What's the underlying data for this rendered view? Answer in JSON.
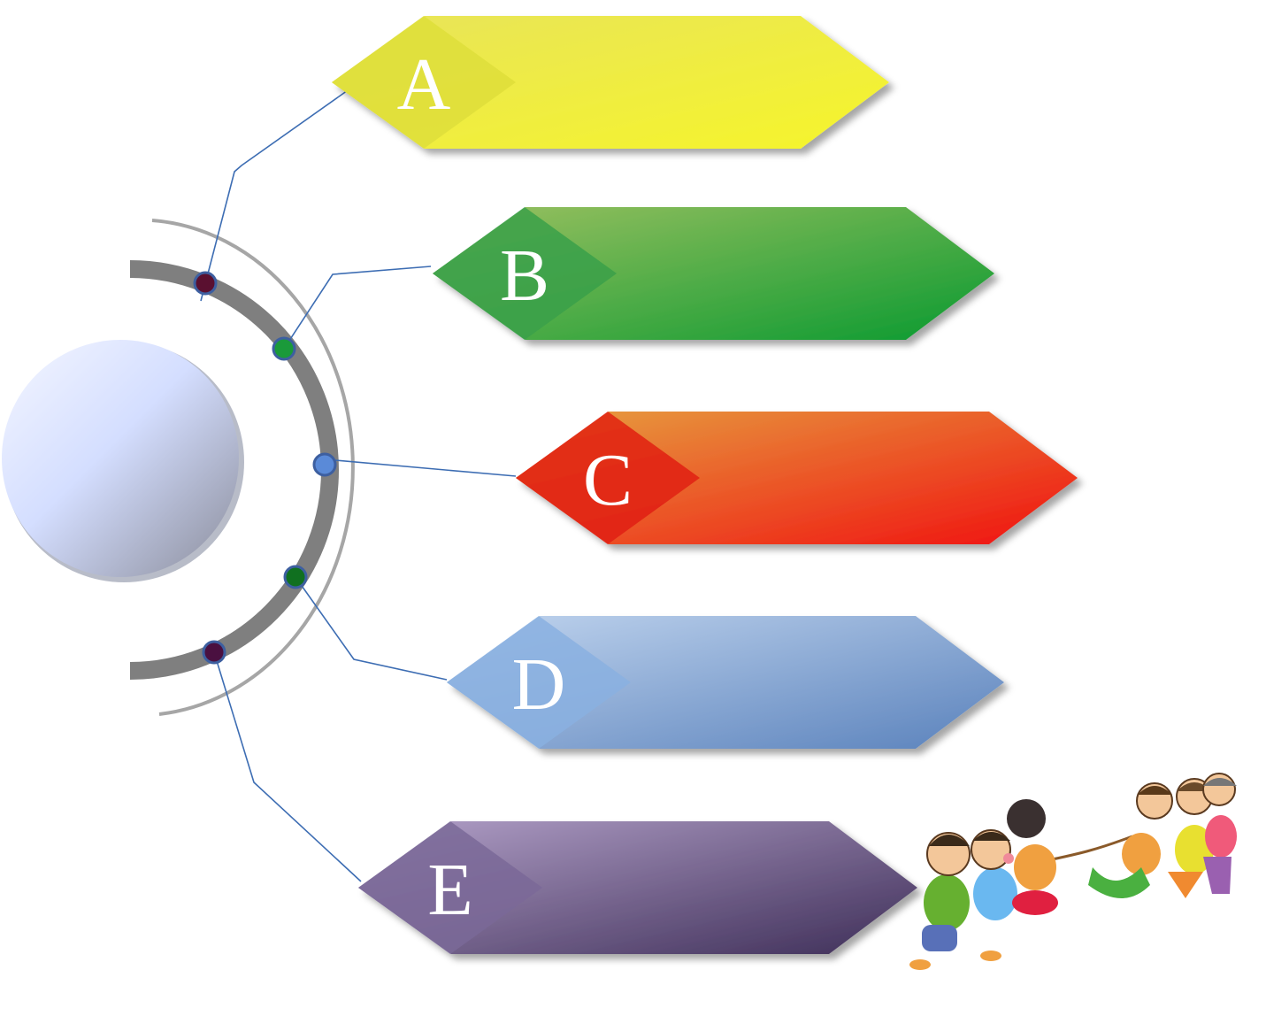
{
  "items": [
    {
      "letter": "A",
      "colors": [
        "#e8e45a",
        "#f6f52a"
      ],
      "diamond": "#dede3a",
      "dot": "#5a1030"
    },
    {
      "letter": "B",
      "colors": [
        "#9ac060",
        "#0a9a30"
      ],
      "diamond": "#3aa04a",
      "dot": "#1a9a3a"
    },
    {
      "letter": "C",
      "colors": [
        "#e6a040",
        "#f01010"
      ],
      "diamond": "#e02010",
      "dot": "#5a8ad8"
    },
    {
      "letter": "D",
      "colors": [
        "#c0d4ee",
        "#5a82bc"
      ],
      "diamond": "#8ab0e0",
      "dot": "#107020"
    },
    {
      "letter": "E",
      "colors": [
        "#b2a0c8",
        "#3e2e58"
      ],
      "diamond": "#7a6898",
      "dot": "#4a1040"
    }
  ],
  "colors": {
    "arc_thick": "#7f7f7f",
    "arc_thin": "#a6a6a6",
    "connector": "#3d6db3"
  }
}
